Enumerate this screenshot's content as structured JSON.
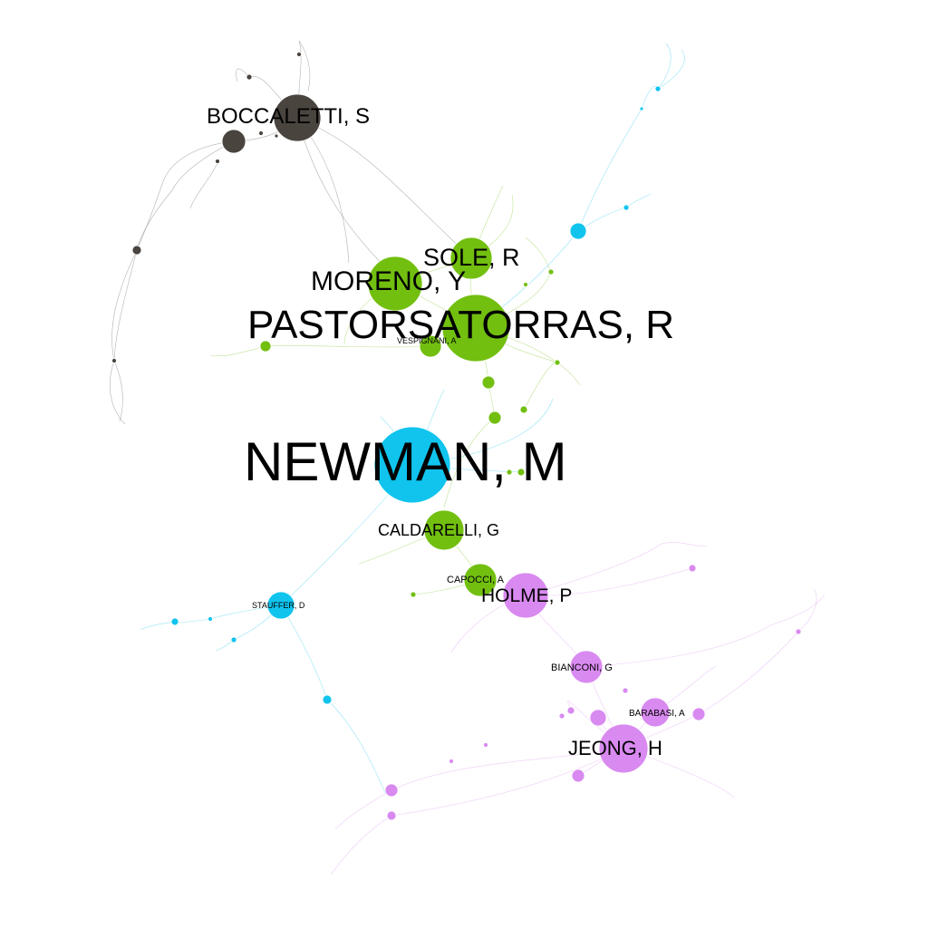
{
  "diagram": {
    "colors": {
      "gray": "#4a443f",
      "green": "#72bf10",
      "cyan": "#10c4ee",
      "violet": "#d98af0"
    },
    "labels": {
      "newman": "NEWMAN, M",
      "pastorsatorras": "PASTORSATORRAS, R",
      "moreno": "MORENO, Y",
      "sole": "SOLE, R",
      "boccaletti": "BOCCALETTI, S",
      "caldarelli": "CALDARELLI, G",
      "holme": "HOLME, P",
      "jeong": "JEONG, H",
      "capocci": "CAPOCCI, A",
      "vespignani": "VESPIGNANI, A",
      "stauffer": "STAUFFER, D",
      "bianconi": "BIANCONI, G",
      "barabasi": "BARABASI, A"
    }
  }
}
